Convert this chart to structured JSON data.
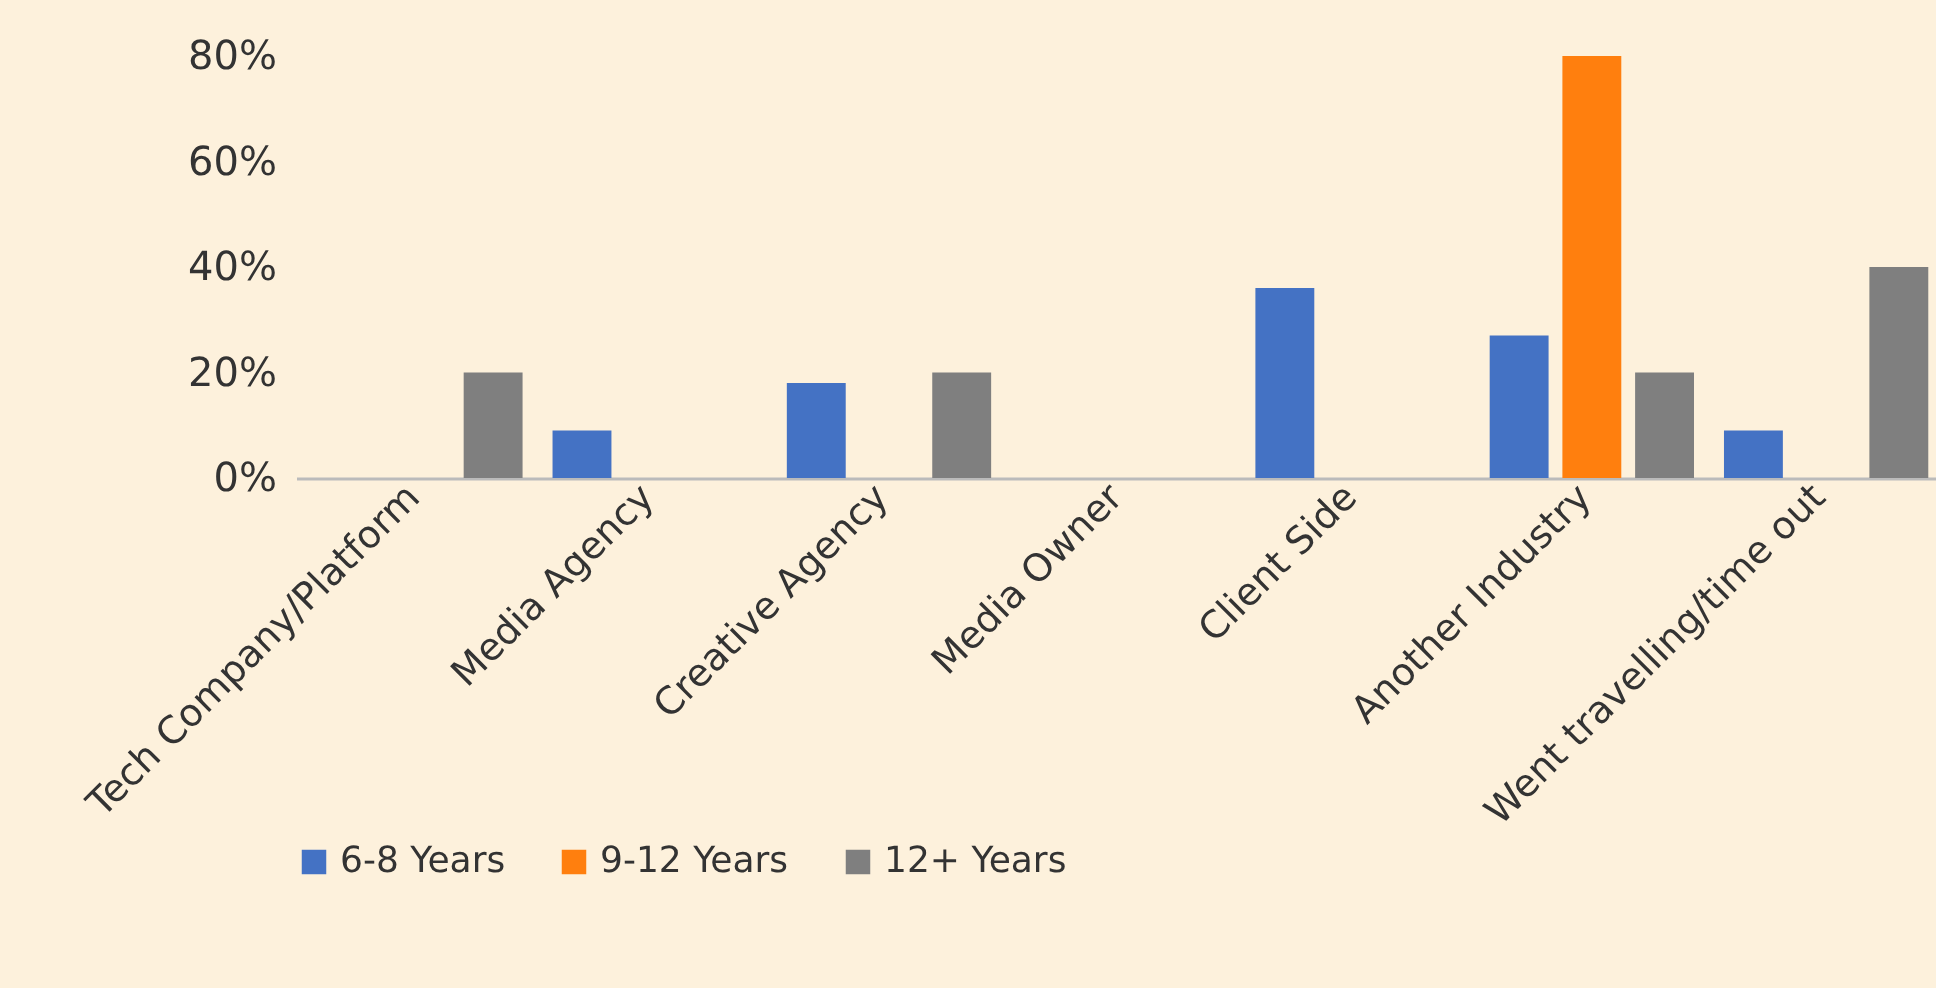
{
  "chart_data": {
    "type": "bar",
    "categories": [
      "Tech Company/Platform",
      "Media Agency",
      "Creative Agency",
      "Media Owner",
      "Client Side",
      "Another Industry",
      "Went travelling/time out"
    ],
    "series": [
      {
        "name": "6-8 Years",
        "color": "#4472c4",
        "values": [
          0,
          9,
          18,
          0,
          36,
          27,
          9
        ]
      },
      {
        "name": "9-12 Years",
        "color": "#ff7f0e",
        "values": [
          0,
          0,
          0,
          0,
          0,
          80,
          0
        ]
      },
      {
        "name": "12+ Years",
        "color": "#7f7f7f",
        "values": [
          20,
          0,
          20,
          0,
          0,
          20,
          40
        ]
      }
    ],
    "ylim": [
      0,
      80
    ],
    "yticks": [
      {
        "value": 0,
        "label": "0%"
      },
      {
        "value": 20,
        "label": "20%"
      },
      {
        "value": 40,
        "label": "40%"
      },
      {
        "value": 60,
        "label": "60%"
      },
      {
        "value": 80,
        "label": "80%"
      }
    ],
    "grid": false,
    "legend": "bottom"
  }
}
